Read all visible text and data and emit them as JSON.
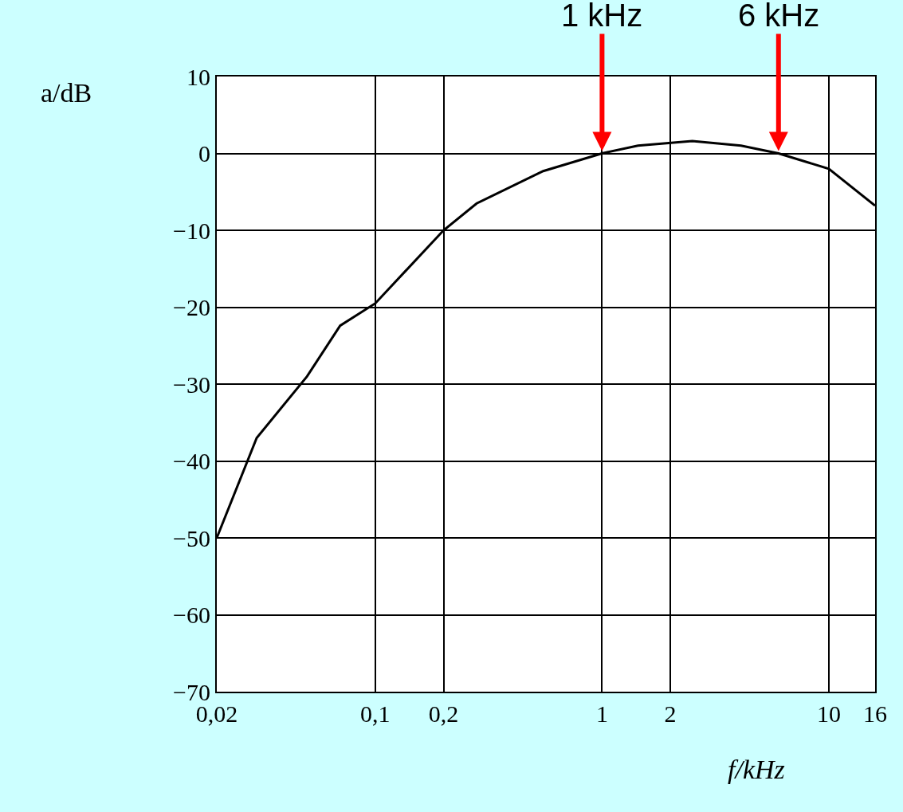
{
  "chart_data": {
    "type": "line",
    "xlabel": "f/kHz",
    "ylabel": "a/dB",
    "log": "x",
    "x": [
      0.02,
      0.03,
      0.05,
      0.07,
      0.1,
      0.2,
      0.28,
      0.55,
      1,
      1.44,
      2.5,
      4.1,
      6,
      10,
      16
    ],
    "series": [
      {
        "color": "#000000",
        "values": [
          -50,
          -37,
          -29,
          -22.4,
          -19.5,
          -10,
          -6.5,
          -2.3,
          0,
          1,
          1.6,
          1,
          0,
          -2,
          -6.8
        ]
      }
    ],
    "xlim": [
      0.02,
      16
    ],
    "ylim": [
      -70,
      10
    ],
    "xticks": [
      {
        "value": 0.02,
        "label": "0,02"
      },
      {
        "value": 0.1,
        "label": "0,1"
      },
      {
        "value": 0.2,
        "label": "0,2"
      },
      1,
      2,
      10,
      16
    ],
    "yticks": [
      -70,
      -60,
      -50,
      -40,
      -30,
      -20,
      -10,
      0,
      10
    ],
    "grid": true,
    "marker": "none",
    "line_style": "solid",
    "annotations": [
      {
        "text": "1 kHz",
        "x": 1,
        "y": 0
      },
      {
        "text": "6 kHz",
        "x": 6,
        "y": 0
      }
    ]
  }
}
